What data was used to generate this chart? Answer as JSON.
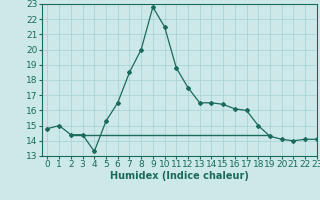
{
  "x": [
    0,
    1,
    2,
    3,
    4,
    5,
    6,
    7,
    8,
    9,
    10,
    11,
    12,
    13,
    14,
    15,
    16,
    17,
    18,
    19,
    20,
    21,
    22,
    23
  ],
  "y": [
    14.8,
    15.0,
    14.4,
    14.4,
    13.3,
    15.3,
    16.5,
    18.5,
    20.0,
    22.8,
    21.5,
    18.8,
    17.5,
    16.5,
    16.5,
    16.4,
    16.1,
    16.0,
    15.0,
    14.3,
    14.1,
    14.0,
    14.1,
    14.1
  ],
  "flat_line_y": 14.4,
  "flat_line_x_start": 2,
  "flat_line_x_end": 19,
  "line_color": "#1a6b5a",
  "bg_color": "#cce8e8",
  "grid_color": "#add4d4",
  "xlabel": "Humidex (Indice chaleur)",
  "ylim": [
    13,
    23
  ],
  "xlim": [
    -0.5,
    23
  ],
  "yticks": [
    13,
    14,
    15,
    16,
    17,
    18,
    19,
    20,
    21,
    22,
    23
  ],
  "xticks": [
    0,
    1,
    2,
    3,
    4,
    5,
    6,
    7,
    8,
    9,
    10,
    11,
    12,
    13,
    14,
    15,
    16,
    17,
    18,
    19,
    20,
    21,
    22,
    23
  ],
  "xlabel_fontsize": 7,
  "tick_fontsize": 6.5
}
